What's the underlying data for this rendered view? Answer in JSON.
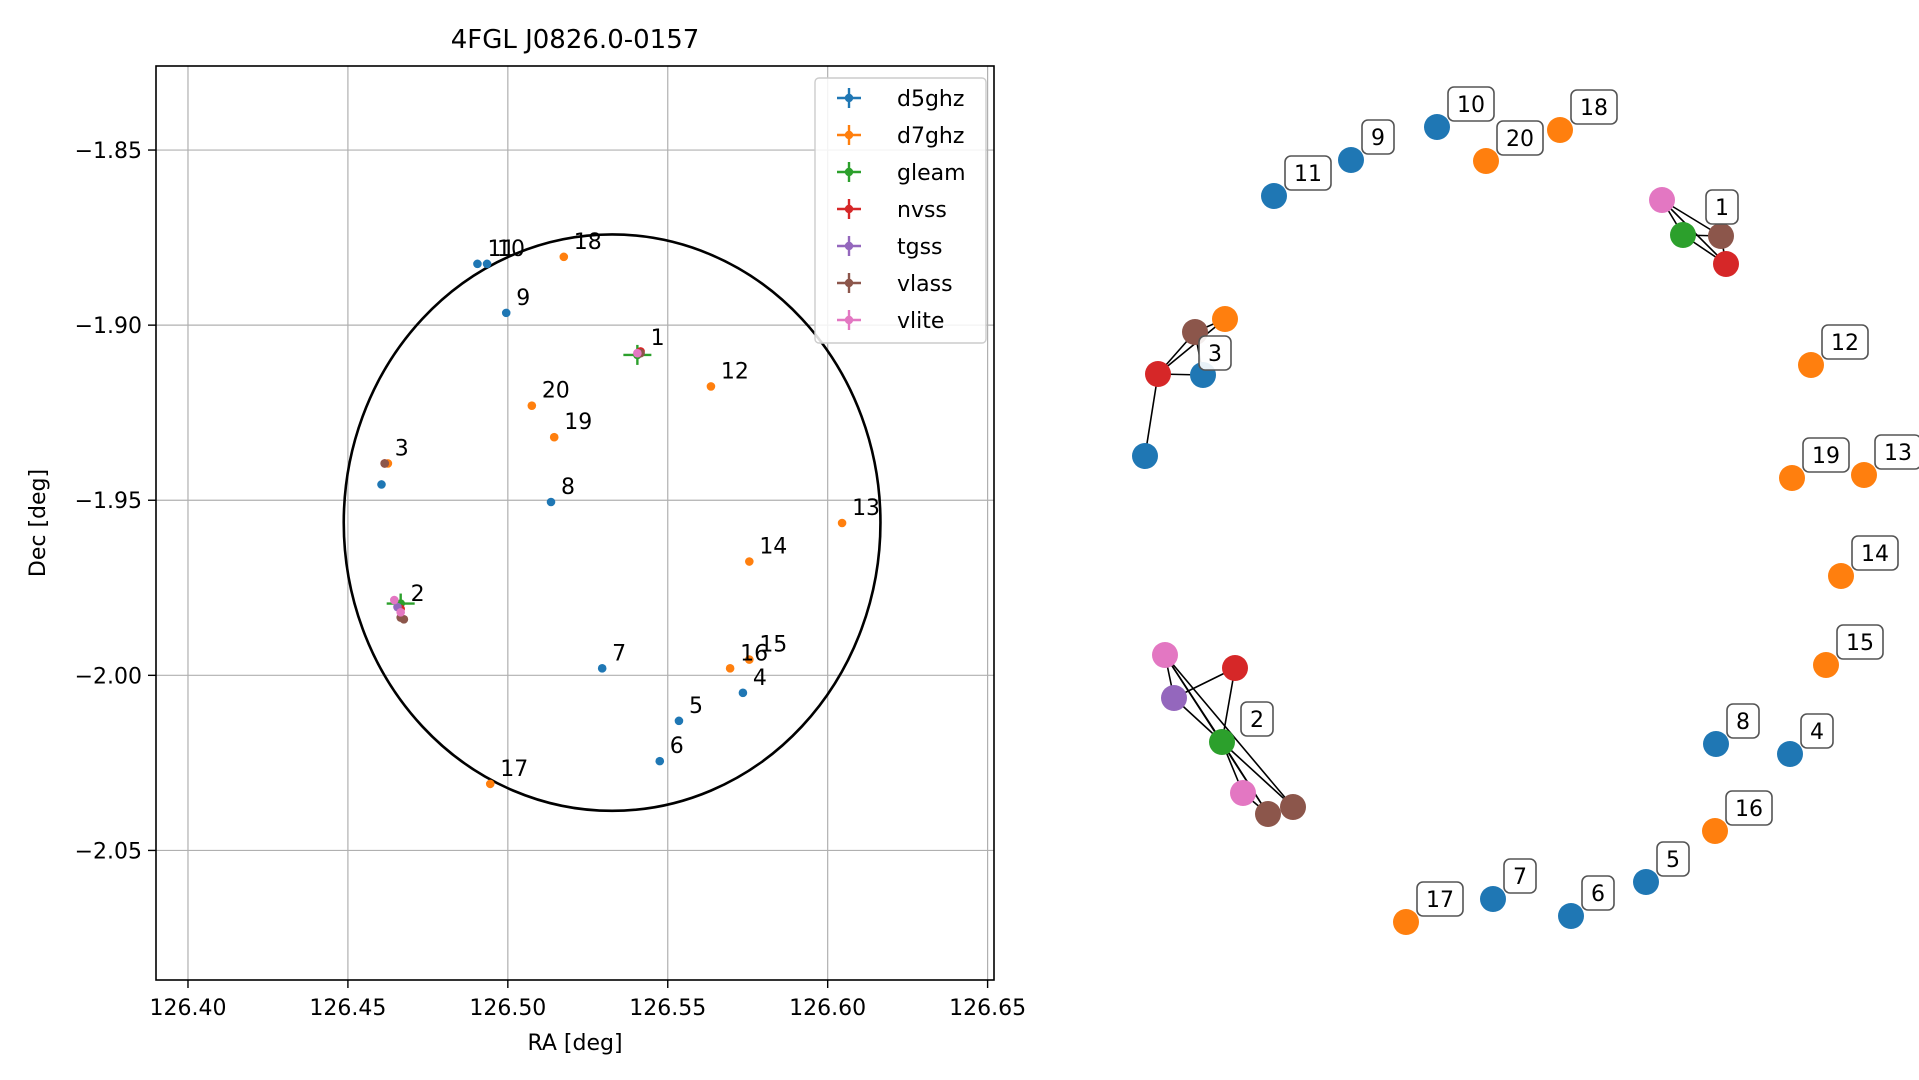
{
  "chart_data": [
    {
      "type": "scatter",
      "title": "4FGL J0826.0-0157",
      "xlabel": "RA [deg]",
      "ylabel": "Dec [deg]",
      "xlim": [
        126.39,
        126.652
      ],
      "ylim": [
        -2.087,
        -1.826
      ],
      "xticks": [
        "126.40",
        "126.45",
        "126.50",
        "126.55",
        "126.60",
        "126.65"
      ],
      "yticks": [
        "−1.85",
        "−1.90",
        "−1.95",
        "−2.00",
        "−2.05"
      ],
      "grid": true,
      "legend_position": "top-right",
      "ellipse": {
        "center": [
          126.5326,
          -1.9564
        ],
        "semi_axis_ra": 0.0839,
        "semi_axis_dec": 0.0823
      },
      "series": [
        {
          "name": "d5ghz",
          "color": "#1f77b4",
          "points": [
            {
              "x": 126.4905,
              "y": -1.8825
            },
            {
              "x": 126.4935,
              "y": -1.8825
            },
            {
              "x": 126.4995,
              "y": -1.8965
            },
            {
              "x": 126.4605,
              "y": -1.9455
            },
            {
              "x": 126.5135,
              "y": -1.9505
            },
            {
              "x": 126.5295,
              "y": -1.998
            },
            {
              "x": 126.5735,
              "y": -2.005
            },
            {
              "x": 126.5535,
              "y": -2.013
            },
            {
              "x": 126.5475,
              "y": -2.0245
            }
          ]
        },
        {
          "name": "d7ghz",
          "color": "#ff7f0e",
          "points": [
            {
              "x": 126.5175,
              "y": -1.8805
            },
            {
              "x": 126.5635,
              "y": -1.9175
            },
            {
              "x": 126.5075,
              "y": -1.923
            },
            {
              "x": 126.5145,
              "y": -1.932
            },
            {
              "x": 126.6045,
              "y": -1.9565
            },
            {
              "x": 126.5755,
              "y": -1.9675
            },
            {
              "x": 126.5755,
              "y": -1.9955
            },
            {
              "x": 126.5695,
              "y": -1.998
            },
            {
              "x": 126.4945,
              "y": -2.031
            },
            {
              "x": 126.4625,
              "y": -1.9395
            }
          ]
        },
        {
          "name": "gleam",
          "color": "#2ca02c",
          "points": [
            {
              "x": 126.5405,
              "y": -1.9085
            },
            {
              "x": 126.4665,
              "y": -1.9795
            }
          ]
        },
        {
          "name": "nvss",
          "color": "#d62728",
          "points": [
            {
              "x": 126.5415,
              "y": -1.9075
            },
            {
              "x": 126.4615,
              "y": -1.9395
            },
            {
              "x": 126.4665,
              "y": -1.981
            }
          ]
        },
        {
          "name": "tgss",
          "color": "#9467bd",
          "points": [
            {
              "x": 126.4655,
              "y": -1.9805
            }
          ]
        },
        {
          "name": "vlass",
          "color": "#8c564b",
          "points": [
            {
              "x": 126.5415,
              "y": -1.908
            },
            {
              "x": 126.4615,
              "y": -1.9395
            },
            {
              "x": 126.4675,
              "y": -1.984
            },
            {
              "x": 126.4665,
              "y": -1.9835
            }
          ]
        },
        {
          "name": "vlite",
          "color": "#e377c2",
          "points": [
            {
              "x": 126.5405,
              "y": -1.908
            },
            {
              "x": 126.4645,
              "y": -1.9785
            },
            {
              "x": 126.4665,
              "y": -1.982
            }
          ]
        }
      ],
      "annotations": [
        {
          "text": "1",
          "x": 126.5415,
          "y": -1.908
        },
        {
          "text": "2",
          "x": 126.4665,
          "y": -1.981
        },
        {
          "text": "3",
          "x": 126.4615,
          "y": -1.9395
        },
        {
          "text": "4",
          "x": 126.5735,
          "y": -2.005
        },
        {
          "text": "5",
          "x": 126.5535,
          "y": -2.013
        },
        {
          "text": "6",
          "x": 126.5475,
          "y": -2.0245
        },
        {
          "text": "7",
          "x": 126.5295,
          "y": -1.998
        },
        {
          "text": "8",
          "x": 126.5135,
          "y": -1.9505
        },
        {
          "text": "9",
          "x": 126.4995,
          "y": -1.8965
        },
        {
          "text": "10",
          "x": 126.4935,
          "y": -1.8825
        },
        {
          "text": "11",
          "x": 126.4905,
          "y": -1.8825
        },
        {
          "text": "12",
          "x": 126.5635,
          "y": -1.9175
        },
        {
          "text": "13",
          "x": 126.6045,
          "y": -1.9565
        },
        {
          "text": "14",
          "x": 126.5755,
          "y": -1.9675
        },
        {
          "text": "15",
          "x": 126.5755,
          "y": -1.9955
        },
        {
          "text": "16",
          "x": 126.5695,
          "y": -1.998
        },
        {
          "text": "17",
          "x": 126.4945,
          "y": -2.031
        },
        {
          "text": "18",
          "x": 126.5175,
          "y": -1.8805
        },
        {
          "text": "19",
          "x": 126.5145,
          "y": -1.932
        },
        {
          "text": "20",
          "x": 126.5075,
          "y": -1.923
        }
      ]
    },
    {
      "type": "scatter",
      "subtype": "graph",
      "nodes": [
        {
          "id": "g1-vlite",
          "color": "#e377c2",
          "x": 0.38,
          "y": 0.82
        },
        {
          "id": "g1-gleam",
          "color": "#2ca02c",
          "x": 0.44,
          "y": 0.74
        },
        {
          "id": "g1-vlass",
          "color": "#8c564b",
          "x": 0.5,
          "y": 0.74
        },
        {
          "id": "g1-nvss",
          "color": "#d62728",
          "x": 0.52,
          "y": 0.67
        },
        {
          "id": "g3-vlass",
          "color": "#8c564b",
          "x": 0.9,
          "y": 0.74
        },
        {
          "id": "g3-d7",
          "color": "#ff7f0e",
          "x": 0.98,
          "y": 0.78
        },
        {
          "id": "g3-nvss",
          "color": "#d62728",
          "x": 0.84,
          "y": 0.64
        },
        {
          "id": "g3-d5",
          "color": "#1f77b4",
          "x": 0.94,
          "y": 0.64
        },
        {
          "id": "g3-d5b",
          "color": "#1f77b4",
          "x": 0.74,
          "y": 0.4
        },
        {
          "id": "g2-vlite",
          "color": "#e377c2",
          "x": 1.4,
          "y": -2.0
        },
        {
          "id": "g2-nvss",
          "color": "#d62728",
          "x": 1.5,
          "y": -2.0
        },
        {
          "id": "g2-tgss",
          "color": "#9467bd",
          "x": 1.36,
          "y": -1.95
        },
        {
          "id": "g2-gleam",
          "color": "#2ca02c",
          "x": 1.44,
          "y": -1.9
        },
        {
          "id": "g2-vlite2",
          "color": "#e377c2",
          "x": 1.46,
          "y": -1.83
        },
        {
          "id": "g2-vlass",
          "color": "#8c564b",
          "x": 1.52,
          "y": -1.8
        },
        {
          "id": "g2-vlass2",
          "color": "#8c564b",
          "x": 1.56,
          "y": -1.81
        },
        {
          "id": "n4",
          "color": "#1f77b4",
          "x": 0.37,
          "y": 0.13
        },
        {
          "id": "n5",
          "color": "#1f77b4",
          "x": 0.23,
          "y": -0.04
        },
        {
          "id": "n6",
          "color": "#1f77b4",
          "x": 0.16,
          "y": -0.07
        },
        {
          "id": "n7",
          "color": "#1f77b4",
          "x": 0.1,
          "y": -0.06
        },
        {
          "id": "n8",
          "color": "#1f77b4",
          "x": 0.28,
          "y": 0.16
        },
        {
          "id": "n9",
          "color": "#1f77b4",
          "x": 0.47,
          "y": 0.14
        },
        {
          "id": "n10",
          "color": "#1f77b4",
          "x": 0.53,
          "y": 0.16
        },
        {
          "id": "n11",
          "color": "#1f77b4",
          "x": 0.4,
          "y": 0.11
        },
        {
          "id": "n12",
          "color": "#ff7f0e",
          "x": 0.35,
          "y": 0.22
        },
        {
          "id": "n13",
          "color": "#ff7f0e",
          "x": 0.39,
          "y": 0.17
        },
        {
          "id": "n14",
          "color": "#ff7f0e",
          "x": 0.38,
          "y": 0.18
        },
        {
          "id": "n15",
          "color": "#ff7f0e",
          "x": 0.37,
          "y": 0.15
        },
        {
          "id": "n16",
          "color": "#ff7f0e",
          "x": 0.34,
          "y": 0.03
        },
        {
          "id": "n17",
          "color": "#ff7f0e",
          "x": 0.04,
          "y": -0.1
        },
        {
          "id": "n18",
          "color": "#ff7f0e",
          "x": 0.61,
          "y": 0.17
        },
        {
          "id": "n19",
          "color": "#ff7f0e",
          "x": 0.38,
          "y": 0.2
        },
        {
          "id": "n20",
          "color": "#ff7f0e",
          "x": 0.57,
          "y": 0.15
        }
      ],
      "labels": [
        "1",
        "2",
        "3",
        "4",
        "5",
        "6",
        "7",
        "8",
        "9",
        "10",
        "11",
        "12",
        "13",
        "14",
        "15",
        "16",
        "17",
        "18",
        "19",
        "20"
      ]
    }
  ]
}
